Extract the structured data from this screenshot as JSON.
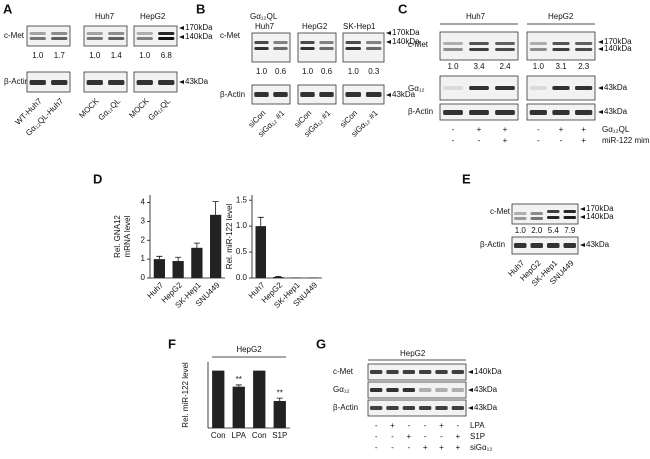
{
  "panels": {
    "A": {
      "label": "A",
      "groups": [
        "Huh7",
        "HepG2"
      ],
      "rows": [
        "c-Met",
        "β-Actin"
      ],
      "ratios": [
        "1.0",
        "1.7",
        "1.0",
        "1.4",
        "1.0",
        "6.8"
      ],
      "markers": [
        "170kDa",
        "140kDa",
        "43kDa"
      ],
      "lanes": [
        "WT-Huh7",
        "Gα₁₂QL-Huh7",
        "MOCK",
        "Gα₁₂QL",
        "MOCK",
        "Gα₁₂QL"
      ]
    },
    "B": {
      "label": "B",
      "groups": [
        "Gα₁₂QL",
        "Huh7",
        "HepG2",
        "SK-Hep1"
      ],
      "rows": [
        "c-Met",
        "β-Actin"
      ],
      "ratios": [
        "1.0",
        "0.6",
        "1.0",
        "0.6",
        "1.0",
        "0.3"
      ],
      "markers": [
        "170kDa",
        "140kDa",
        "43kDa"
      ],
      "lanes": [
        "siCon",
        "siGα₁₂ #1",
        "siCon",
        "siGα₁₂ #1",
        "siCon",
        "siGα₁₂ #1"
      ]
    },
    "C": {
      "label": "C",
      "groups": [
        "Huh7",
        "HepG2"
      ],
      "rows": [
        "c-Met",
        "Gα₁₂",
        "β-Actin"
      ],
      "ratios": [
        "1.0",
        "3.4",
        "2.4",
        "1.0",
        "3.1",
        "2.3"
      ],
      "markers": [
        "170kDa",
        "140kDa",
        "43kDa",
        "43kDa"
      ],
      "treatments": [
        {
          "name": "Gα₁₂QL",
          "signs": [
            "-",
            "+",
            "+",
            "-",
            "+",
            "+"
          ]
        },
        {
          "name": "miR-122 mimic",
          "signs": [
            "-",
            "-",
            "+",
            "-",
            "-",
            "+"
          ]
        }
      ]
    },
    "D": {
      "label": "D"
    },
    "E": {
      "label": "E",
      "rows": [
        "c-Met",
        "β-Actin"
      ],
      "ratios": [
        "1.0",
        "2.0",
        "5.4",
        "7.9"
      ],
      "markers": [
        "170kDa",
        "140kDa",
        "43kDa"
      ],
      "lanes": [
        "Huh7",
        "HepG2",
        "SK-Hep1",
        "SNU449"
      ]
    },
    "F": {
      "label": "F"
    },
    "G": {
      "label": "G",
      "groups": [
        "HepG2"
      ],
      "rows": [
        "c-Met",
        "Gα₁₂",
        "β-Actin"
      ],
      "markers": [
        "140kDa",
        "43kDa",
        "43kDa"
      ],
      "treatments": [
        {
          "name": "LPA",
          "signs": [
            "-",
            "+",
            "-",
            "-",
            "+",
            "-"
          ]
        },
        {
          "name": "S1P",
          "signs": [
            "-",
            "-",
            "+",
            "-",
            "-",
            "+"
          ]
        },
        {
          "name": "siGα₁₂",
          "signs": [
            "-",
            "-",
            "-",
            "+",
            "+",
            "+"
          ]
        }
      ]
    }
  },
  "chart_data": [
    {
      "type": "bar",
      "categories": [
        "Huh7",
        "HepG2",
        "SK-Hep1",
        "SNU449"
      ],
      "values": [
        1.0,
        0.9,
        1.6,
        3.35
      ],
      "errors": [
        0.15,
        0.2,
        0.25,
        0.7
      ],
      "ylabel": [
        "Rel. GNA12",
        "mRNA level"
      ],
      "ylim": [
        0,
        4.4
      ],
      "yticks": [
        0,
        1,
        2,
        3,
        4
      ],
      "color": "#222222"
    },
    {
      "type": "bar",
      "categories": [
        "Huh7",
        "HepG2",
        "SK-Hep1",
        "SNU449"
      ],
      "values": [
        1.0,
        0.02,
        0.01,
        0.01
      ],
      "errors": [
        0.17,
        0.01,
        0,
        0
      ],
      "ylabel": [
        "Rel. miR-122 level"
      ],
      "ylim": [
        0,
        1.6
      ],
      "yticks": [
        {
          "value": 0,
          "label": "0.0"
        },
        {
          "value": 0.5,
          "label": "0.5"
        },
        {
          "value": 1,
          "label": "1.0"
        },
        {
          "value": 1.5,
          "label": "1.5"
        }
      ],
      "color": "#222222"
    },
    {
      "type": "bar",
      "subtitle": "HepG2",
      "categories": [
        "Con",
        "LPA",
        "Con",
        "S1P"
      ],
      "values": [
        1.0,
        0.72,
        1.0,
        0.47
      ],
      "errors": [
        0,
        0.03,
        0,
        0.05
      ],
      "ylabel": [
        "Rel. miR-122 level"
      ],
      "ylim": [
        0,
        1.15
      ],
      "color": "#222222",
      "annotations": [
        {
          "category": "LPA",
          "text": "**"
        },
        {
          "category": "S1P",
          "text": "**"
        }
      ]
    }
  ]
}
